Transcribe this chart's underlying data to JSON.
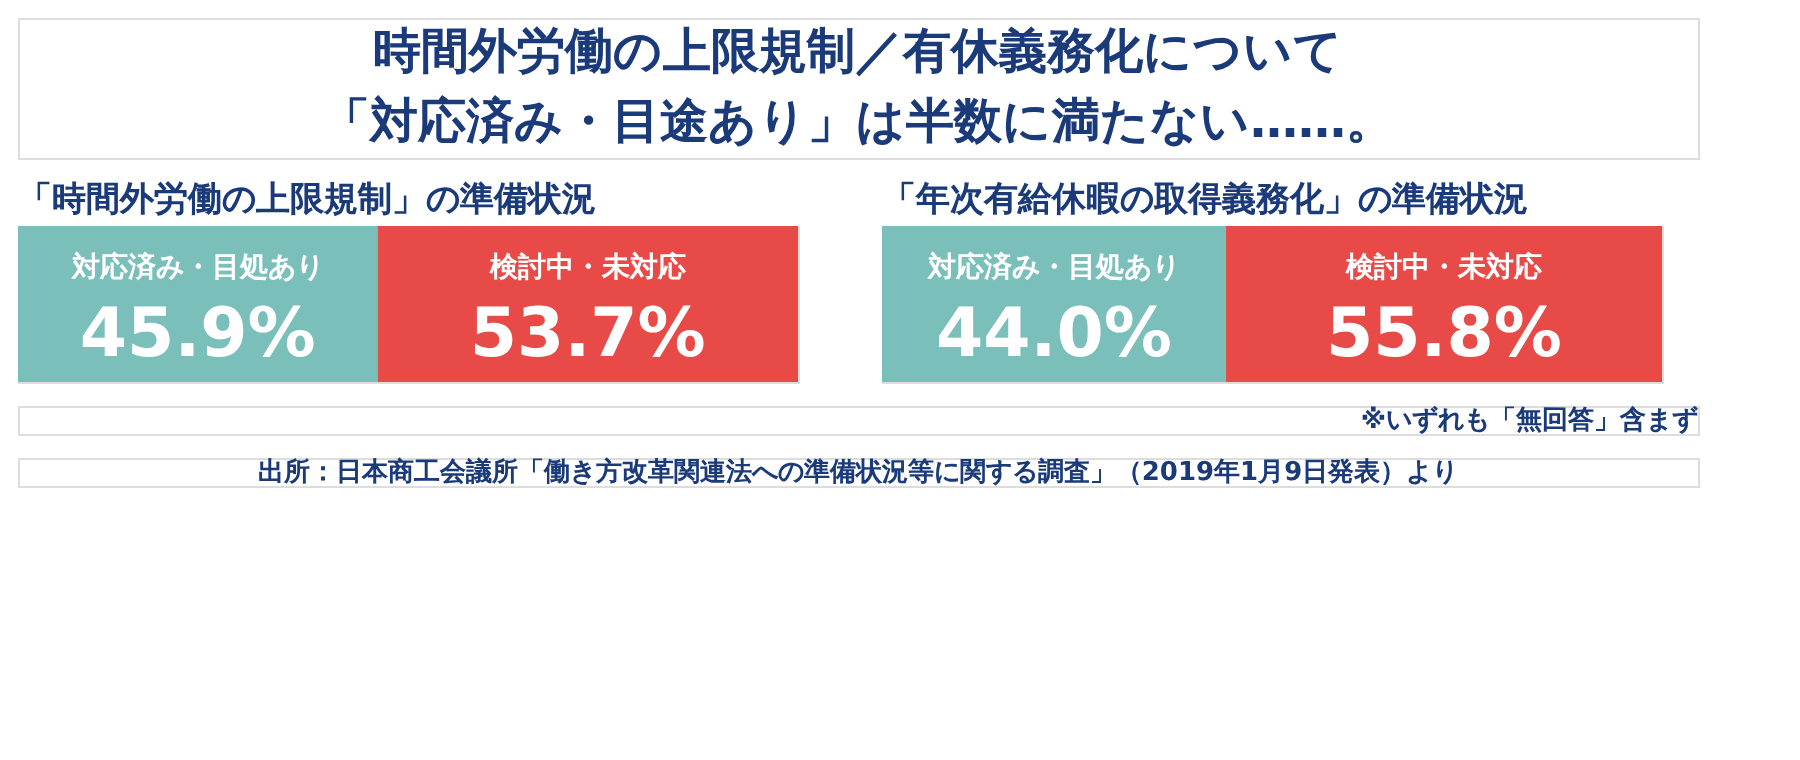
{
  "chart_data": [
    {
      "type": "other",
      "title": "時間外労働の上限規制／有休義務化について",
      "subtitle": "「対応済み・目途あり」は半数に満たない……。",
      "annotations": [
        "出所：日本商工会議所「働き方改革関連法への準備状況等に関する調査」（2019年1月9日発表）より"
      ]
    },
    {
      "type": "bar",
      "title": "「時間外労働の上限規制」の準備状況",
      "orientation": "horizontal",
      "stacked": true,
      "categories": [
        null
      ],
      "xlim": [
        0,
        99.6
      ],
      "tick_labels": false,
      "series": [
        {
          "name": "対応済み・目処あり",
          "color": "#7bbfbb",
          "values": [
            45.9
          ],
          "value_labels": [
            "45.9%"
          ]
        },
        {
          "name": "検討中・未対応",
          "color": "#e84a47",
          "values": [
            53.7
          ],
          "value_labels": [
            "53.7%"
          ]
        }
      ]
    },
    {
      "type": "bar",
      "title": "「年次有給休暇の取得義務化」の準備状況",
      "orientation": "horizontal",
      "stacked": true,
      "categories": [
        null
      ],
      "xlim": [
        0,
        99.8
      ],
      "tick_labels": false,
      "annotations": [
        "※いずれも「無回答」含まず"
      ],
      "series": [
        {
          "name": "対応済み・目処あり",
          "color": "#7bbfbb",
          "values": [
            44.0
          ],
          "value_labels": [
            "44.0%"
          ]
        },
        {
          "name": "検討中・未対応",
          "color": "#e84a47",
          "values": [
            55.8
          ],
          "value_labels": [
            "55.8%"
          ]
        }
      ]
    }
  ]
}
